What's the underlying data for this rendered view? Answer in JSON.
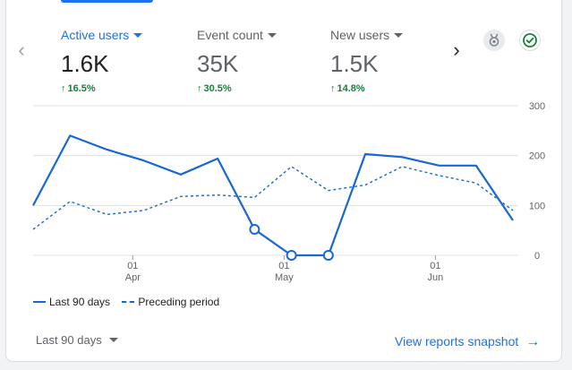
{
  "header": {
    "tabs": [
      {
        "label": "Active users",
        "value": "1.6K",
        "delta": "16.5%"
      },
      {
        "label": "Event count",
        "value": "35K",
        "delta": "30.5%"
      },
      {
        "label": "New users",
        "value": "1.5K",
        "delta": "14.8%"
      }
    ],
    "icons": {
      "prev": "chevron-left-icon",
      "next": "chevron-right-icon",
      "insights": "insights-badge-icon",
      "check": "check-circle-icon"
    }
  },
  "chart_data": {
    "type": "line",
    "x_ticks": [
      {
        "day": "01",
        "month": "Apr"
      },
      {
        "day": "01",
        "month": "May"
      },
      {
        "day": "01",
        "month": "Jun"
      }
    ],
    "y_ticks": [
      "300",
      "200",
      "100",
      "0"
    ],
    "ylim": [
      0,
      300
    ],
    "series": [
      {
        "name": "Last 90 days",
        "style": "solid",
        "values": [
          100,
          240,
          212,
          190,
          162,
          194,
          52,
          0,
          0,
          203,
          197,
          180,
          180,
          70
        ],
        "marker_indices": [
          6,
          7,
          8
        ]
      },
      {
        "name": "Preceding period",
        "style": "dashed",
        "values": [
          52,
          108,
          82,
          90,
          118,
          121,
          116,
          178,
          130,
          141,
          178,
          160,
          145,
          90
        ]
      }
    ],
    "colors": {
      "line": "#1967d2",
      "grid": "#e0e0e0",
      "axis_text": "#5f6368"
    }
  },
  "footer": {
    "range_label": "Last 90 days",
    "snapshot_link": "View reports snapshot"
  }
}
